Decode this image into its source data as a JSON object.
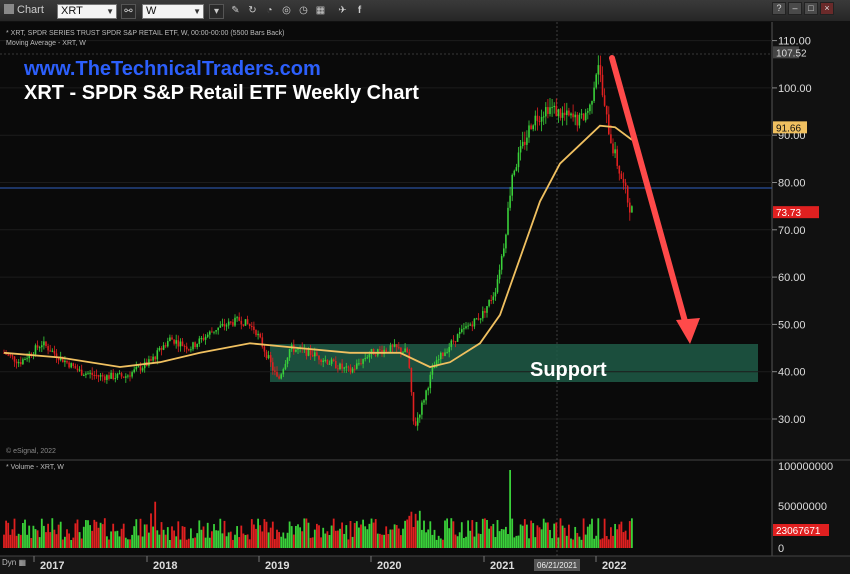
{
  "toolbar": {
    "app_label": "Chart",
    "symbol": "XRT",
    "interval": "W",
    "icons": [
      "link-icon",
      "pencil-icon",
      "refresh-icon",
      "gauge-icon",
      "target-icon",
      "clock-icon",
      "grid-icon",
      "twitter-icon",
      "facebook-icon"
    ],
    "window_buttons": [
      "?",
      "–",
      "□",
      "×"
    ]
  },
  "legend": {
    "line1": "* XRT, SPDR SERIES TRUST SPDR S&P RETAIL ETF, W, 00:00-00:00 (5500 Bars Back)",
    "line2": "Moving Average - XRT, W"
  },
  "overlay": {
    "website": "www.TheTechnicalTraders.com",
    "title": "XRT - SPDR S&P Retail ETF Weekly Chart",
    "support_label": "Support"
  },
  "price_axis": {
    "ticks": [
      "110.00",
      "100.00",
      "90.00",
      "80.00",
      "70.00",
      "60.00",
      "50.00",
      "40.00",
      "30.00"
    ],
    "top_marker": "107.52",
    "ma_marker": "91.66",
    "last_marker": "73.73"
  },
  "volume": {
    "legend": "* Volume - XRT, W",
    "ticks": [
      "100000000",
      "50000000",
      "0"
    ],
    "last_marker": "23067671"
  },
  "time_axis": {
    "years": [
      "2017",
      "2018",
      "2019",
      "2020",
      "2021",
      "2022"
    ],
    "cursor_date": "06/21/2021"
  },
  "footer": {
    "dyn": "Dyn",
    "copyright": "© eSignal, 2022"
  },
  "colors": {
    "up": "#3ad13a",
    "down": "#e02020",
    "moving_average": "#f0c060",
    "support_zone": "#1e5a46",
    "arrow": "#ff4a4a",
    "website": "#2c5ffb"
  },
  "chart_data": {
    "type": "candlestick",
    "title": "XRT - SPDR S&P Retail ETF Weekly Chart",
    "x_range": [
      "2016",
      "2022"
    ],
    "y_range": [
      25,
      112
    ],
    "approx_close_path": [
      {
        "x": "2016-06",
        "y": 44
      },
      {
        "x": "2017-01",
        "y": 45
      },
      {
        "x": "2017-06",
        "y": 40
      },
      {
        "x": "2018-01",
        "y": 44
      },
      {
        "x": "2018-08",
        "y": 51
      },
      {
        "x": "2018-12",
        "y": 39
      },
      {
        "x": "2019-06",
        "y": 44
      },
      {
        "x": "2019-12",
        "y": 45
      },
      {
        "x": "2020-03",
        "y": 27
      },
      {
        "x": "2020-06",
        "y": 40
      },
      {
        "x": "2020-12",
        "y": 57
      },
      {
        "x": "2021-03",
        "y": 90
      },
      {
        "x": "2021-06",
        "y": 97
      },
      {
        "x": "2021-11",
        "y": 105
      },
      {
        "x": "2022-02",
        "y": 74
      }
    ],
    "moving_average_last": 91.66,
    "last_close": 73.73,
    "support_zone": [
      38,
      46
    ]
  }
}
